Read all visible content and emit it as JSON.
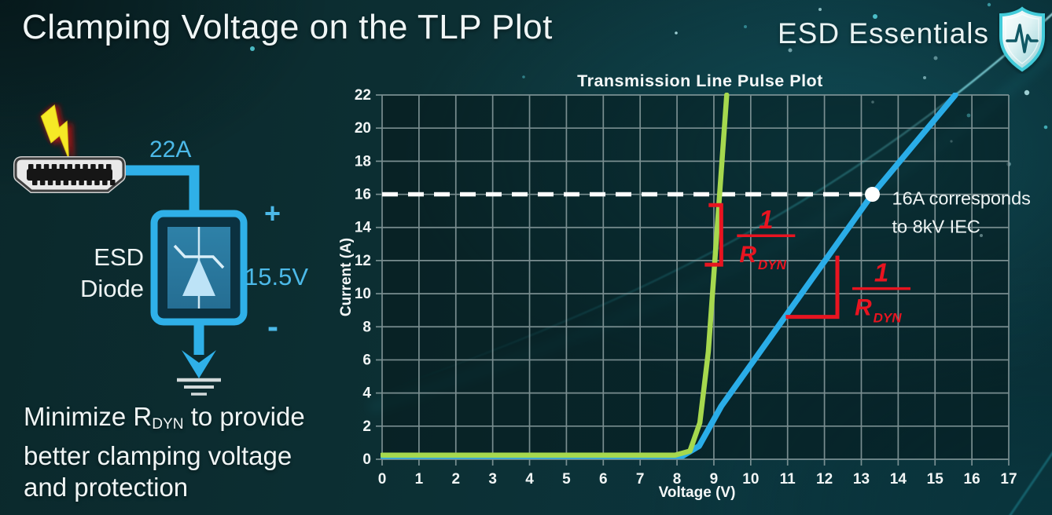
{
  "slide": {
    "title": "Clamping Voltage on the TLP Plot",
    "brand": {
      "name": "ESD Essentials",
      "icon": "shield-pulse-icon"
    },
    "note": {
      "line1_prefix": "Minimize R",
      "line1_sub": "DYN",
      "line1_suffix": " to provide",
      "line2": "better clamping voltage",
      "line3": "and protection"
    }
  },
  "circuit": {
    "surge_current_label": "22A",
    "device_label_line1": "ESD",
    "device_label_line2": "Diode",
    "plus_sign": "+",
    "minus_sign": "-",
    "clamp_voltage_label": "15.5V",
    "colors": {
      "wire": "#2fb0e8",
      "label_cyan": "#4cb9e8",
      "bolt_yellow": "#f6e926",
      "bolt_glow": "#9c1515"
    }
  },
  "chart_data": {
    "type": "line",
    "title": "Transmission Line Pulse Plot",
    "xlabel": "Voltage (V)",
    "ylabel": "Current (A)",
    "xlim": [
      0,
      17
    ],
    "ylim": [
      0,
      22
    ],
    "xtick_step": 1,
    "ytick_step": 2,
    "grid": true,
    "legend": "none",
    "series": [
      {
        "name": "shallow-slope-esd-diode",
        "color": "#2aade8",
        "width": 7.5,
        "points": [
          [
            0,
            0.2
          ],
          [
            8.15,
            0.2
          ],
          [
            8.6,
            0.8
          ],
          [
            9.2,
            3.2
          ],
          [
            13.3,
            16
          ],
          [
            15.55,
            22
          ]
        ]
      },
      {
        "name": "steep-slope-esd-diode",
        "color": "#a6d84e",
        "width": 6.5,
        "points": [
          [
            0,
            0.25
          ],
          [
            7.95,
            0.25
          ],
          [
            8.35,
            0.5
          ],
          [
            8.62,
            2.2
          ],
          [
            8.85,
            6.5
          ],
          [
            9.35,
            22
          ]
        ]
      }
    ],
    "threshold": {
      "y": 16,
      "dot_x": 13.3,
      "label_line1": "16A corresponds",
      "label_line2": "to 8kV IEC",
      "color": "#ffffff"
    },
    "slope_markers": [
      {
        "type": "bracket-vertical",
        "x": 9.2,
        "y_top": 15.35,
        "y_bottom": 11.75,
        "num": "1",
        "den": "R",
        "den_sub": "DYN"
      },
      {
        "type": "right-angle",
        "corner_x": 12.35,
        "corner_y": 8.6,
        "top_y": 12.3,
        "left_x": 10.95,
        "num": "1",
        "den": "R",
        "den_sub": "DYN"
      }
    ],
    "colors": {
      "slope_annotation": "#e81420",
      "grid": "#8da0a2",
      "axis_text": "#f1f5f5"
    }
  }
}
